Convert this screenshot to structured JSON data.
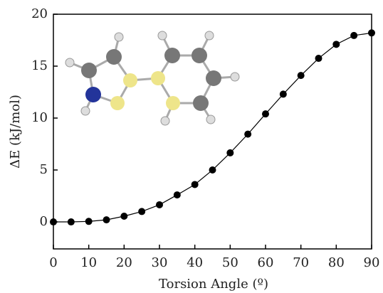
{
  "chart_data": {
    "type": "line",
    "xlabel": "Torsion Angle (º)",
    "ylabel": "ΔE (kJ/mol)",
    "x": [
      0,
      5,
      10,
      15,
      20,
      25,
      30,
      35,
      40,
      45,
      50,
      55,
      60,
      65,
      70,
      75,
      80,
      85,
      90
    ],
    "series": [
      {
        "color": "#000000",
        "values": [
          0,
          0,
          0.05,
          0.2,
          0.55,
          1.0,
          1.65,
          2.6,
          3.6,
          5.0,
          6.65,
          8.45,
          10.4,
          12.3,
          14.1,
          15.75,
          17.1,
          17.95,
          18.2
        ]
      }
    ],
    "xlim": [
      0,
      90
    ],
    "xticks": [
      0,
      10,
      20,
      30,
      40,
      50,
      60,
      70,
      80,
      90
    ],
    "ylim": [
      -2.6,
      20
    ],
    "yticks": [
      0,
      5,
      10,
      15,
      20
    ]
  }
}
